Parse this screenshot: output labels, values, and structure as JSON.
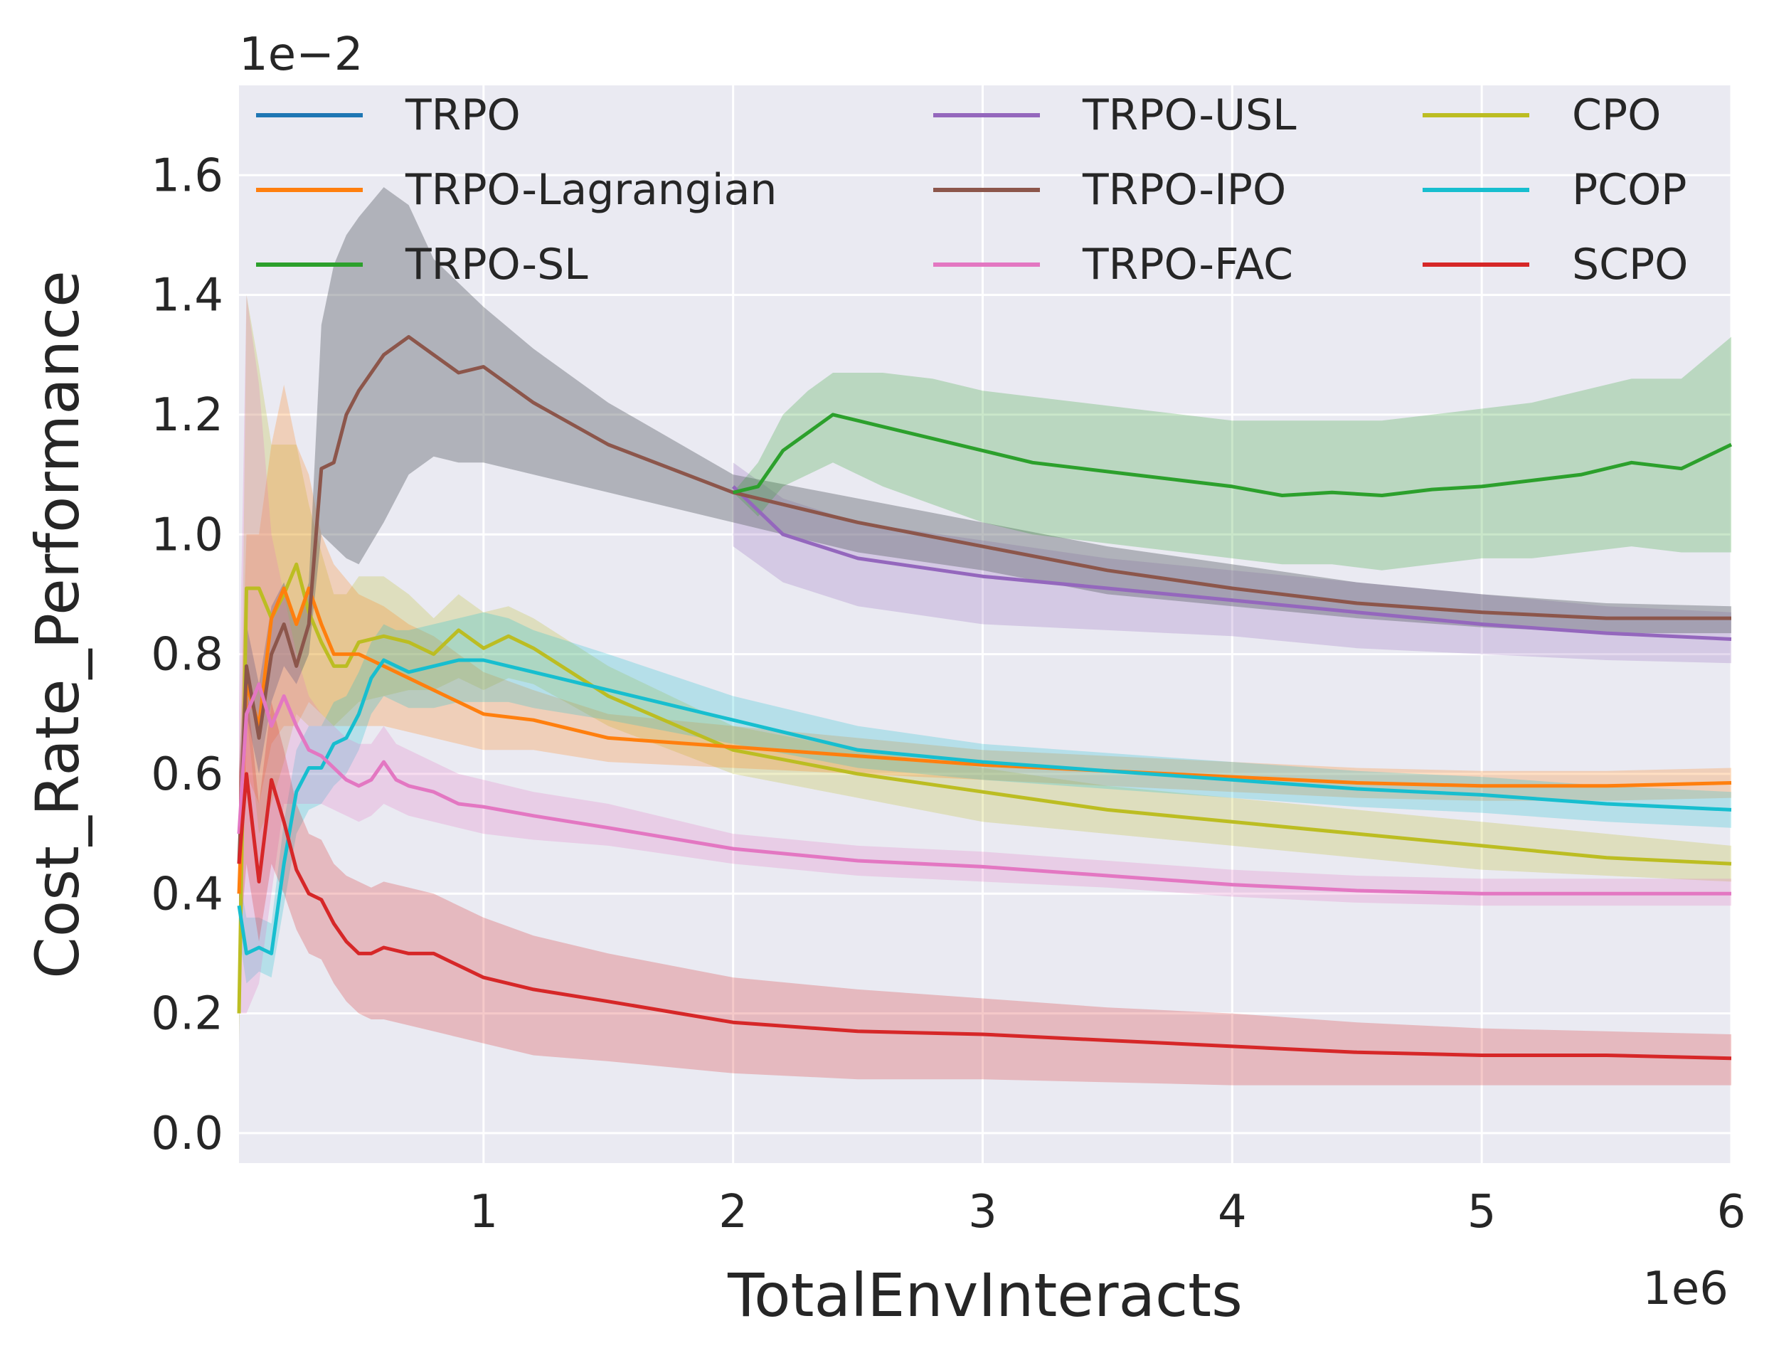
{
  "chart_data": {
    "type": "line",
    "title": "",
    "xlabel": "TotalEnvInteracts",
    "ylabel": "Cost_Rate_Performance",
    "x_multiplier_label": "1e6",
    "y_multiplier_label": "1e−2",
    "xlim": [
      0.02,
      6.0
    ],
    "ylim": [
      -0.05,
      1.75
    ],
    "xticks": [
      1,
      2,
      3,
      4,
      5,
      6
    ],
    "xtick_labels": [
      "1",
      "2",
      "3",
      "4",
      "5",
      "6"
    ],
    "yticks": [
      0.0,
      0.2,
      0.4,
      0.6,
      0.8,
      1.0,
      1.2,
      1.4,
      1.6
    ],
    "ytick_labels": [
      "0.0",
      "0.2",
      "0.4",
      "0.6",
      "0.8",
      "1.0",
      "1.2",
      "1.4",
      "1.6"
    ],
    "grid": true,
    "legend_position": "top",
    "series": [
      {
        "name": "TRPO",
        "color": "#1f77b4",
        "x": [],
        "values": [],
        "lower": [],
        "upper": []
      },
      {
        "name": "TRPO-USL",
        "color": "#9467bd",
        "x": [
          2.0,
          2.2,
          2.5,
          3.0,
          3.5,
          4.0,
          4.5,
          5.0,
          5.5,
          6.0
        ],
        "values": [
          1.08,
          1.0,
          0.96,
          0.93,
          0.91,
          0.89,
          0.87,
          0.85,
          0.835,
          0.825
        ],
        "lower": [
          0.98,
          0.92,
          0.88,
          0.85,
          0.84,
          0.83,
          0.81,
          0.8,
          0.79,
          0.785
        ],
        "upper": [
          1.12,
          1.06,
          1.02,
          0.99,
          0.96,
          0.94,
          0.92,
          0.9,
          0.88,
          0.87
        ]
      },
      {
        "name": "CPO",
        "color": "#bcbd22",
        "x": [
          0.0,
          0.05,
          0.1,
          0.15,
          0.2,
          0.25,
          0.3,
          0.35,
          0.4,
          0.45,
          0.5,
          0.6,
          0.7,
          0.8,
          0.9,
          1.0,
          1.1,
          1.2,
          1.5,
          2.0,
          2.5,
          3.0,
          3.5,
          4.0,
          4.5,
          5.0,
          5.5,
          6.0
        ],
        "values": [
          0.2,
          0.91,
          0.91,
          0.86,
          0.9,
          0.95,
          0.87,
          0.82,
          0.78,
          0.78,
          0.82,
          0.83,
          0.82,
          0.8,
          0.84,
          0.81,
          0.83,
          0.81,
          0.73,
          0.64,
          0.6,
          0.57,
          0.54,
          0.52,
          0.5,
          0.48,
          0.46,
          0.45
        ],
        "lower": [
          0.15,
          0.7,
          0.5,
          0.55,
          0.62,
          0.7,
          0.68,
          0.68,
          0.68,
          0.7,
          0.72,
          0.73,
          0.74,
          0.74,
          0.76,
          0.74,
          0.76,
          0.75,
          0.68,
          0.6,
          0.56,
          0.52,
          0.5,
          0.48,
          0.46,
          0.44,
          0.43,
          0.42
        ],
        "upper": [
          0.3,
          1.4,
          1.28,
          1.15,
          1.15,
          1.15,
          1.05,
          0.97,
          0.9,
          0.9,
          0.93,
          0.93,
          0.9,
          0.86,
          0.9,
          0.87,
          0.88,
          0.86,
          0.78,
          0.68,
          0.64,
          0.61,
          0.58,
          0.56,
          0.54,
          0.52,
          0.5,
          0.48
        ]
      },
      {
        "name": "TRPO-Lagrangian",
        "color": "#ff7f0e",
        "x": [
          0.0,
          0.05,
          0.1,
          0.15,
          0.2,
          0.25,
          0.3,
          0.35,
          0.4,
          0.5,
          0.6,
          0.7,
          0.8,
          0.9,
          1.0,
          1.2,
          1.5,
          2.0,
          2.5,
          3.0,
          3.5,
          4.0,
          4.5,
          5.0,
          5.5,
          6.0
        ],
        "values": [
          0.4,
          0.75,
          0.68,
          0.86,
          0.91,
          0.85,
          0.91,
          0.85,
          0.8,
          0.8,
          0.78,
          0.76,
          0.74,
          0.72,
          0.7,
          0.69,
          0.66,
          0.645,
          0.63,
          0.615,
          0.605,
          0.595,
          0.585,
          0.58,
          0.58,
          0.585
        ],
        "lower": [
          0.3,
          0.6,
          0.55,
          0.65,
          0.68,
          0.68,
          0.72,
          0.7,
          0.68,
          0.68,
          0.68,
          0.67,
          0.66,
          0.65,
          0.64,
          0.64,
          0.62,
          0.61,
          0.6,
          0.59,
          0.58,
          0.57,
          0.56,
          0.555,
          0.555,
          0.56
        ],
        "upper": [
          0.6,
          1.0,
          1.0,
          1.15,
          1.25,
          1.15,
          1.1,
          1.0,
          0.95,
          0.9,
          0.88,
          0.85,
          0.83,
          0.8,
          0.77,
          0.74,
          0.7,
          0.68,
          0.66,
          0.64,
          0.63,
          0.62,
          0.61,
          0.605,
          0.605,
          0.61
        ]
      },
      {
        "name": "TRPO-IPO",
        "color": "#8c564b",
        "x": [
          0.0,
          0.05,
          0.1,
          0.15,
          0.2,
          0.25,
          0.3,
          0.35,
          0.4,
          0.45,
          0.5,
          0.6,
          0.7,
          0.8,
          0.9,
          1.0,
          1.2,
          1.5,
          2.0,
          2.5,
          3.0,
          3.5,
          4.0,
          4.5,
          5.0,
          5.5,
          6.0
        ],
        "values": [
          0.45,
          0.78,
          0.66,
          0.8,
          0.85,
          0.78,
          0.85,
          1.11,
          1.12,
          1.2,
          1.24,
          1.3,
          1.33,
          1.3,
          1.27,
          1.28,
          1.22,
          1.15,
          1.07,
          1.02,
          0.98,
          0.94,
          0.91,
          0.885,
          0.87,
          0.86,
          0.86
        ],
        "lower": [
          0.3,
          0.7,
          0.6,
          0.72,
          0.78,
          0.75,
          0.8,
          1.0,
          0.98,
          0.96,
          0.95,
          1.02,
          1.1,
          1.13,
          1.12,
          1.12,
          1.1,
          1.07,
          1.02,
          0.97,
          0.94,
          0.9,
          0.88,
          0.86,
          0.845,
          0.835,
          0.835
        ],
        "upper": [
          0.6,
          0.85,
          0.75,
          0.88,
          0.92,
          0.85,
          0.92,
          1.35,
          1.45,
          1.5,
          1.53,
          1.58,
          1.55,
          1.46,
          1.42,
          1.38,
          1.31,
          1.22,
          1.1,
          1.06,
          1.02,
          0.98,
          0.95,
          0.92,
          0.9,
          0.885,
          0.88
        ]
      },
      {
        "name": "PCOP",
        "color": "#17becf",
        "x": [
          0.0,
          0.05,
          0.1,
          0.15,
          0.2,
          0.25,
          0.3,
          0.35,
          0.4,
          0.45,
          0.5,
          0.55,
          0.6,
          0.65,
          0.7,
          0.8,
          0.9,
          1.0,
          1.1,
          1.2,
          1.5,
          2.0,
          2.5,
          3.0,
          3.5,
          4.0,
          4.5,
          5.0,
          5.5,
          6.0
        ],
        "values": [
          0.38,
          0.3,
          0.31,
          0.3,
          0.45,
          0.57,
          0.61,
          0.61,
          0.65,
          0.66,
          0.7,
          0.76,
          0.79,
          0.78,
          0.77,
          0.78,
          0.79,
          0.79,
          0.78,
          0.77,
          0.74,
          0.69,
          0.64,
          0.62,
          0.605,
          0.59,
          0.575,
          0.565,
          0.55,
          0.54
        ],
        "lower": [
          0.33,
          0.25,
          0.27,
          0.26,
          0.38,
          0.5,
          0.54,
          0.55,
          0.58,
          0.6,
          0.64,
          0.7,
          0.73,
          0.72,
          0.71,
          0.71,
          0.72,
          0.72,
          0.72,
          0.71,
          0.69,
          0.65,
          0.61,
          0.59,
          0.575,
          0.56,
          0.545,
          0.535,
          0.52,
          0.51
        ],
        "upper": [
          0.43,
          0.36,
          0.36,
          0.35,
          0.52,
          0.64,
          0.68,
          0.68,
          0.72,
          0.73,
          0.77,
          0.82,
          0.85,
          0.84,
          0.84,
          0.85,
          0.86,
          0.87,
          0.86,
          0.84,
          0.8,
          0.73,
          0.68,
          0.65,
          0.635,
          0.62,
          0.605,
          0.595,
          0.58,
          0.57
        ]
      },
      {
        "name": "TRPO-SL",
        "color": "#2ca02c",
        "x": [
          2.0,
          2.1,
          2.2,
          2.3,
          2.4,
          2.5,
          2.6,
          2.8,
          3.0,
          3.2,
          3.4,
          3.6,
          3.8,
          4.0,
          4.2,
          4.4,
          4.6,
          4.8,
          5.0,
          5.2,
          5.4,
          5.6,
          5.8,
          6.0
        ],
        "values": [
          1.07,
          1.08,
          1.14,
          1.17,
          1.2,
          1.19,
          1.18,
          1.16,
          1.14,
          1.12,
          1.11,
          1.1,
          1.09,
          1.08,
          1.065,
          1.07,
          1.065,
          1.075,
          1.08,
          1.09,
          1.1,
          1.12,
          1.11,
          1.15
        ],
        "lower": [
          1.07,
          1.03,
          1.08,
          1.1,
          1.12,
          1.1,
          1.08,
          1.05,
          1.02,
          1.0,
          0.99,
          0.98,
          0.97,
          0.96,
          0.95,
          0.95,
          0.94,
          0.95,
          0.96,
          0.96,
          0.97,
          0.98,
          0.97,
          0.97
        ],
        "upper": [
          1.07,
          1.12,
          1.2,
          1.24,
          1.27,
          1.27,
          1.27,
          1.26,
          1.24,
          1.23,
          1.22,
          1.21,
          1.2,
          1.19,
          1.19,
          1.19,
          1.19,
          1.2,
          1.21,
          1.22,
          1.24,
          1.26,
          1.26,
          1.33
        ]
      },
      {
        "name": "TRPO-FAC",
        "color": "#e377c2",
        "x": [
          0.0,
          0.05,
          0.1,
          0.15,
          0.2,
          0.25,
          0.3,
          0.35,
          0.4,
          0.45,
          0.5,
          0.55,
          0.6,
          0.65,
          0.7,
          0.8,
          0.9,
          1.0,
          1.2,
          1.5,
          2.0,
          2.5,
          3.0,
          3.5,
          4.0,
          4.5,
          5.0,
          5.5,
          6.0
        ],
        "values": [
          0.5,
          0.7,
          0.75,
          0.68,
          0.73,
          0.68,
          0.64,
          0.63,
          0.61,
          0.59,
          0.58,
          0.59,
          0.62,
          0.59,
          0.58,
          0.57,
          0.55,
          0.545,
          0.53,
          0.51,
          0.475,
          0.455,
          0.445,
          0.43,
          0.415,
          0.405,
          0.4,
          0.4,
          0.4
        ],
        "lower": [
          0.2,
          0.2,
          0.25,
          0.4,
          0.55,
          0.55,
          0.55,
          0.55,
          0.54,
          0.53,
          0.52,
          0.53,
          0.55,
          0.54,
          0.53,
          0.52,
          0.51,
          0.5,
          0.49,
          0.48,
          0.45,
          0.43,
          0.42,
          0.41,
          0.395,
          0.385,
          0.38,
          0.38,
          0.38
        ],
        "upper": [
          0.7,
          1.4,
          1.25,
          1.0,
          0.9,
          0.8,
          0.73,
          0.7,
          0.68,
          0.66,
          0.65,
          0.65,
          0.68,
          0.65,
          0.64,
          0.62,
          0.6,
          0.59,
          0.57,
          0.55,
          0.5,
          0.48,
          0.47,
          0.455,
          0.44,
          0.43,
          0.425,
          0.425,
          0.425
        ]
      },
      {
        "name": "SCPO",
        "color": "#d62728",
        "x": [
          0.0,
          0.05,
          0.1,
          0.15,
          0.2,
          0.25,
          0.3,
          0.35,
          0.4,
          0.45,
          0.5,
          0.55,
          0.6,
          0.7,
          0.8,
          0.9,
          1.0,
          1.2,
          1.5,
          2.0,
          2.5,
          3.0,
          3.5,
          4.0,
          4.5,
          5.0,
          5.5,
          6.0
        ],
        "values": [
          0.45,
          0.6,
          0.42,
          0.59,
          0.52,
          0.44,
          0.4,
          0.39,
          0.35,
          0.32,
          0.3,
          0.3,
          0.31,
          0.3,
          0.3,
          0.28,
          0.26,
          0.24,
          0.22,
          0.185,
          0.17,
          0.165,
          0.155,
          0.145,
          0.135,
          0.13,
          0.13,
          0.125
        ],
        "lower": [
          0.3,
          0.45,
          0.32,
          0.45,
          0.4,
          0.34,
          0.3,
          0.29,
          0.25,
          0.22,
          0.2,
          0.19,
          0.19,
          0.18,
          0.17,
          0.16,
          0.15,
          0.13,
          0.12,
          0.1,
          0.09,
          0.09,
          0.085,
          0.08,
          0.08,
          0.08,
          0.08,
          0.08
        ],
        "upper": [
          0.6,
          0.75,
          0.55,
          0.72,
          0.64,
          0.55,
          0.5,
          0.49,
          0.45,
          0.43,
          0.42,
          0.41,
          0.42,
          0.41,
          0.4,
          0.38,
          0.36,
          0.33,
          0.3,
          0.26,
          0.24,
          0.225,
          0.21,
          0.2,
          0.185,
          0.175,
          0.17,
          0.165
        ]
      }
    ],
    "legend": [
      {
        "name": "TRPO",
        "color": "#1f77b4"
      },
      {
        "name": "TRPO-Lagrangian",
        "color": "#ff7f0e"
      },
      {
        "name": "TRPO-SL",
        "color": "#2ca02c"
      },
      {
        "name": "TRPO-USL",
        "color": "#9467bd"
      },
      {
        "name": "TRPO-IPO",
        "color": "#8c564b"
      },
      {
        "name": "TRPO-FAC",
        "color": "#e377c2"
      },
      {
        "name": "CPO",
        "color": "#bcbd22"
      },
      {
        "name": "PCOP",
        "color": "#17becf"
      },
      {
        "name": "SCPO",
        "color": "#d62728"
      }
    ],
    "background_color": "#eaeaf2",
    "grid_color": "#ffffff"
  }
}
